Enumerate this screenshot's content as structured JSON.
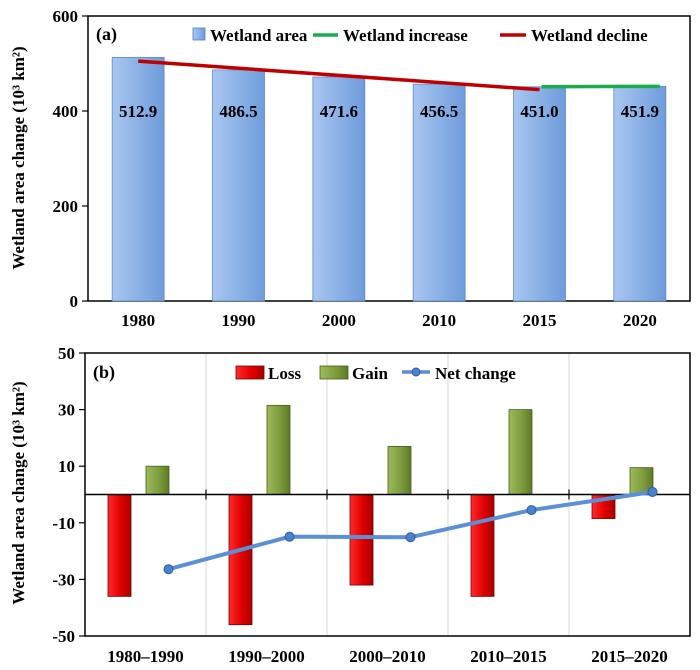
{
  "chart_data": [
    {
      "type": "bar",
      "panel_label": "(a)",
      "ylabel": "Wetland area change (10³ km²)",
      "ylim": [
        0,
        600
      ],
      "yticks": [
        "0",
        "200",
        "400",
        "600"
      ],
      "categories": [
        "1980",
        "1990",
        "2000",
        "2010",
        "2015",
        "2020"
      ],
      "series": [
        {
          "name": "Wetland area",
          "values": [
            512.9,
            486.5,
            471.6,
            456.5,
            451.0,
            451.9
          ],
          "color": "#8fb4e8"
        }
      ],
      "data_labels": [
        "512.9",
        "486.5",
        "471.6",
        "456.5",
        "451.0",
        "451.9"
      ],
      "trend_lines": [
        {
          "name": "Wetland increase",
          "from": "2015",
          "to": "2020",
          "y": [
            451.0,
            451.9
          ],
          "color": "#1aab4a"
        },
        {
          "name": "Wetland decline",
          "from": "1980",
          "to": "2015",
          "y": [
            505,
            445
          ],
          "color": "#c00000"
        }
      ],
      "legend": [
        "Wetland area",
        "Wetland increase",
        "Wetland decline"
      ],
      "legend_position": "top"
    },
    {
      "type": "bar",
      "panel_label": "(b)",
      "ylabel": "Wetland area change (10³ km²)",
      "ylim": [
        -50,
        50
      ],
      "yticks": [
        "-50",
        "-30",
        "-10",
        "10",
        "30",
        "50"
      ],
      "categories": [
        "1980–1990",
        "1990–2000",
        "2000–2010",
        "2010–2015",
        "2015–2020"
      ],
      "series": [
        {
          "name": "Loss",
          "type": "bar",
          "values": [
            -36,
            -46,
            -32,
            -36,
            -8.5
          ],
          "color": "#e00000"
        },
        {
          "name": "Gain",
          "type": "bar",
          "values": [
            10,
            31.5,
            17,
            30,
            9.5
          ],
          "color": "#7a9a3a"
        },
        {
          "name": "Net change",
          "type": "line",
          "values": [
            -26.4,
            -14.9,
            -15.1,
            -5.5,
            0.9
          ],
          "color": "#5b8fd6"
        }
      ],
      "legend": [
        "Loss",
        "Gain",
        "Net change"
      ],
      "legend_position": "top"
    }
  ]
}
